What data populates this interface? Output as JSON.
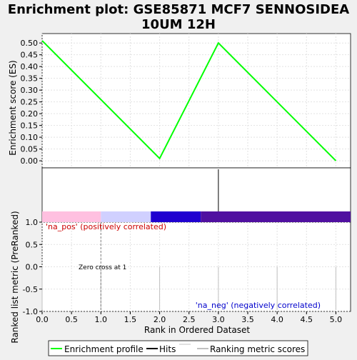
{
  "title_line1": "Enrichment plot: GSE85871 MCF7 SENNOSIDEA",
  "title_line2": "10UM 12H",
  "chart_data": [
    {
      "type": "line",
      "ylabel": "Enrichment score (ES)",
      "xlim": [
        0,
        5.25
      ],
      "ylim": [
        -0.03,
        0.54
      ],
      "yticks": [
        "0.50",
        "0.45",
        "0.40",
        "0.35",
        "0.30",
        "0.25",
        "0.20",
        "0.15",
        "0.10",
        "0.05",
        "0.00"
      ],
      "grid": true,
      "series": [
        {
          "name": "Enrichment profile",
          "color": "#00ff00",
          "x": [
            0,
            2,
            3,
            5
          ],
          "y": [
            0.51,
            0.01,
            0.5,
            0.0
          ]
        }
      ]
    },
    {
      "type": "hits",
      "x": [
        3
      ],
      "color": "#000000"
    },
    {
      "type": "bar",
      "ylabel": "Ranked list metric (PreRanked)",
      "xlabel": "Rank in Ordered Dataset",
      "xlim": [
        0,
        5.25
      ],
      "ylim": [
        -1.0,
        1.0
      ],
      "xticks": [
        "0.0",
        "0.5",
        "1.0",
        "1.5",
        "2.0",
        "2.5",
        "3.0",
        "3.5",
        "4.0",
        "4.5",
        "5.0"
      ],
      "yticks": [
        "1.0",
        "0.5",
        "0.0",
        "-0.5",
        "-1.0"
      ],
      "x": [
        0,
        1,
        2,
        3,
        4,
        5
      ],
      "values": [
        0,
        0,
        0,
        0,
        0,
        0
      ],
      "zero_cross_x": 1,
      "zero_cross_label": "Zero cross at 1",
      "pos_label": "'na_pos' (positively correlated)",
      "neg_label": "'na_neg' (negatively correlated)",
      "pos_color": "#cc0000",
      "neg_color": "#0000cc",
      "gradient": [
        {
          "from": 0,
          "to": 1.0,
          "color": "#ffc0e0"
        },
        {
          "from": 1.0,
          "to": 1.85,
          "color": "#d0d0ff"
        },
        {
          "from": 1.85,
          "to": 2.7,
          "color": "#2000d0"
        },
        {
          "from": 2.7,
          "to": 5.25,
          "color": "#5010a0"
        }
      ]
    }
  ],
  "legend": [
    {
      "label": "Enrichment profile",
      "color": "#00ff00"
    },
    {
      "label": "Hits",
      "color": "#000000"
    },
    {
      "label": "Ranking metric scores",
      "color": "#c0c0c0"
    }
  ]
}
